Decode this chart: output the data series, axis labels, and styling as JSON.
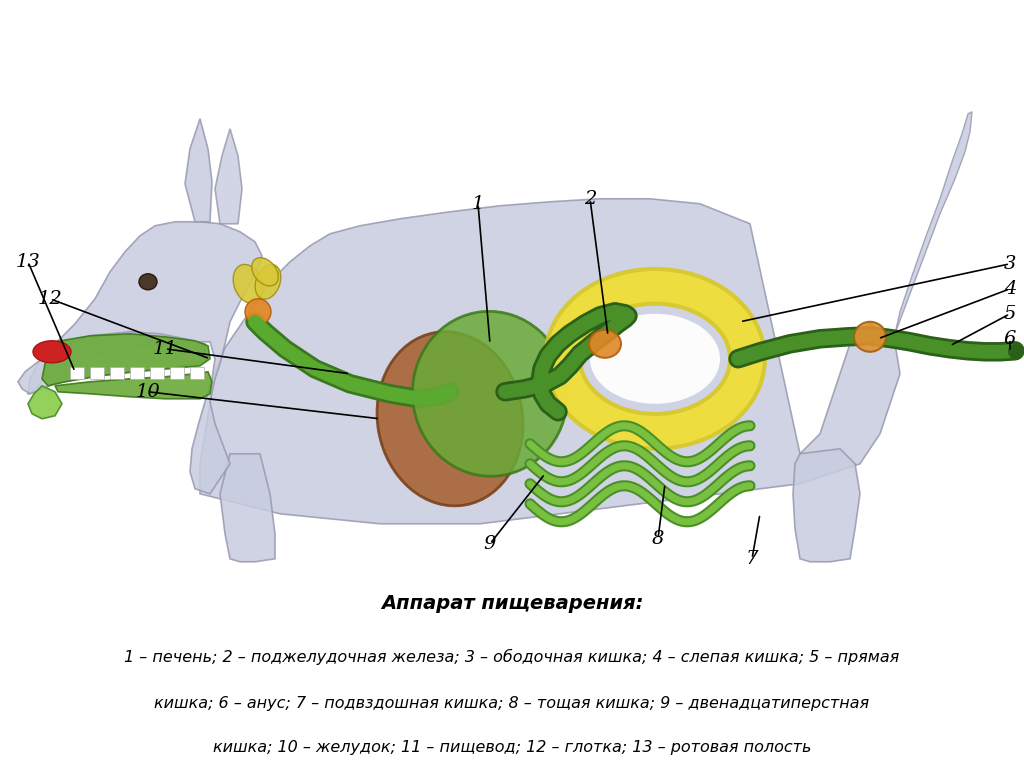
{
  "title": "Аппарат пищеварения:",
  "caption_line1": "1 – печень; 2 – поджелудочная железа; 3 – ободочная кишка; 4 – слепая кишка; 5 – прямая",
  "caption_line2": "кишка; 6 – анус; 7 – подвздошная кишка; 8 – тощая кишка; 9 – двенадцатиперстная",
  "caption_line3": "кишка; 10 – желудок; 11 – пищевод; 12 – глотка; 13 – ротовая полость",
  "bg_color": "#ffffff"
}
